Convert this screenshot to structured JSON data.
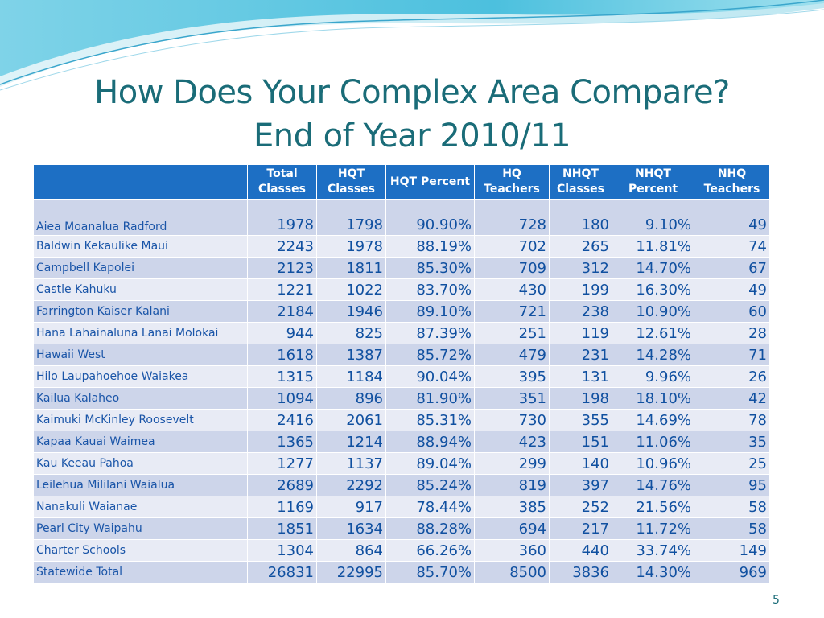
{
  "slide": {
    "title_line1": "How Does Your Complex Area Compare?",
    "title_line2": "End of Year 2010/11",
    "page_number": "5"
  },
  "colors": {
    "header_bg": "#1d6fc4",
    "title": "#1a6c78",
    "row_odd": "#cdd5ea",
    "row_even": "#e8ebf5"
  },
  "table": {
    "headers": [
      "",
      "Total Classes",
      "HQT Classes",
      "HQT Percent",
      "HQ Teachers",
      "NHQT Classes",
      "NHQT Percent",
      "NHQ Teachers"
    ],
    "rows": [
      [
        "Aiea Moanalua Radford",
        "1978",
        "1798",
        "90.90%",
        "728",
        "180",
        "9.10%",
        "49"
      ],
      [
        "Baldwin Kekaulike Maui",
        "2243",
        "1978",
        "88.19%",
        "702",
        "265",
        "11.81%",
        "74"
      ],
      [
        "Campbell Kapolei",
        "2123",
        "1811",
        "85.30%",
        "709",
        "312",
        "14.70%",
        "67"
      ],
      [
        "Castle Kahuku",
        "1221",
        "1022",
        "83.70%",
        "430",
        "199",
        "16.30%",
        "49"
      ],
      [
        "Farrington Kaiser Kalani",
        "2184",
        "1946",
        "89.10%",
        "721",
        "238",
        "10.90%",
        "60"
      ],
      [
        "Hana Lahainaluna Lanai Molokai",
        "944",
        "825",
        "87.39%",
        "251",
        "119",
        "12.61%",
        "28"
      ],
      [
        "Hawaii West",
        "1618",
        "1387",
        "85.72%",
        "479",
        "231",
        "14.28%",
        "71"
      ],
      [
        "Hilo Laupahoehoe Waiakea",
        "1315",
        "1184",
        "90.04%",
        "395",
        "131",
        "9.96%",
        "26"
      ],
      [
        "Kailua Kalaheo",
        "1094",
        "896",
        "81.90%",
        "351",
        "198",
        "18.10%",
        "42"
      ],
      [
        "Kaimuki McKinley Roosevelt",
        "2416",
        "2061",
        "85.31%",
        "730",
        "355",
        "14.69%",
        "78"
      ],
      [
        "Kapaa Kauai Waimea",
        "1365",
        "1214",
        "88.94%",
        "423",
        "151",
        "11.06%",
        "35"
      ],
      [
        "Kau Keeau Pahoa",
        "1277",
        "1137",
        "89.04%",
        "299",
        "140",
        "10.96%",
        "25"
      ],
      [
        "Leilehua Mililani Waialua",
        "2689",
        "2292",
        "85.24%",
        "819",
        "397",
        "14.76%",
        "95"
      ],
      [
        "Nanakuli Waianae",
        "1169",
        "917",
        "78.44%",
        "385",
        "252",
        "21.56%",
        "58"
      ],
      [
        "Pearl City Waipahu",
        "1851",
        "1634",
        "88.28%",
        "694",
        "217",
        "11.72%",
        "58"
      ],
      [
        "Charter Schools",
        "1304",
        "864",
        "66.26%",
        "360",
        "440",
        "33.74%",
        "149"
      ],
      [
        "Statewide Total",
        "26831",
        "22995",
        "85.70%",
        "8500",
        "3836",
        "14.30%",
        "969"
      ]
    ]
  }
}
